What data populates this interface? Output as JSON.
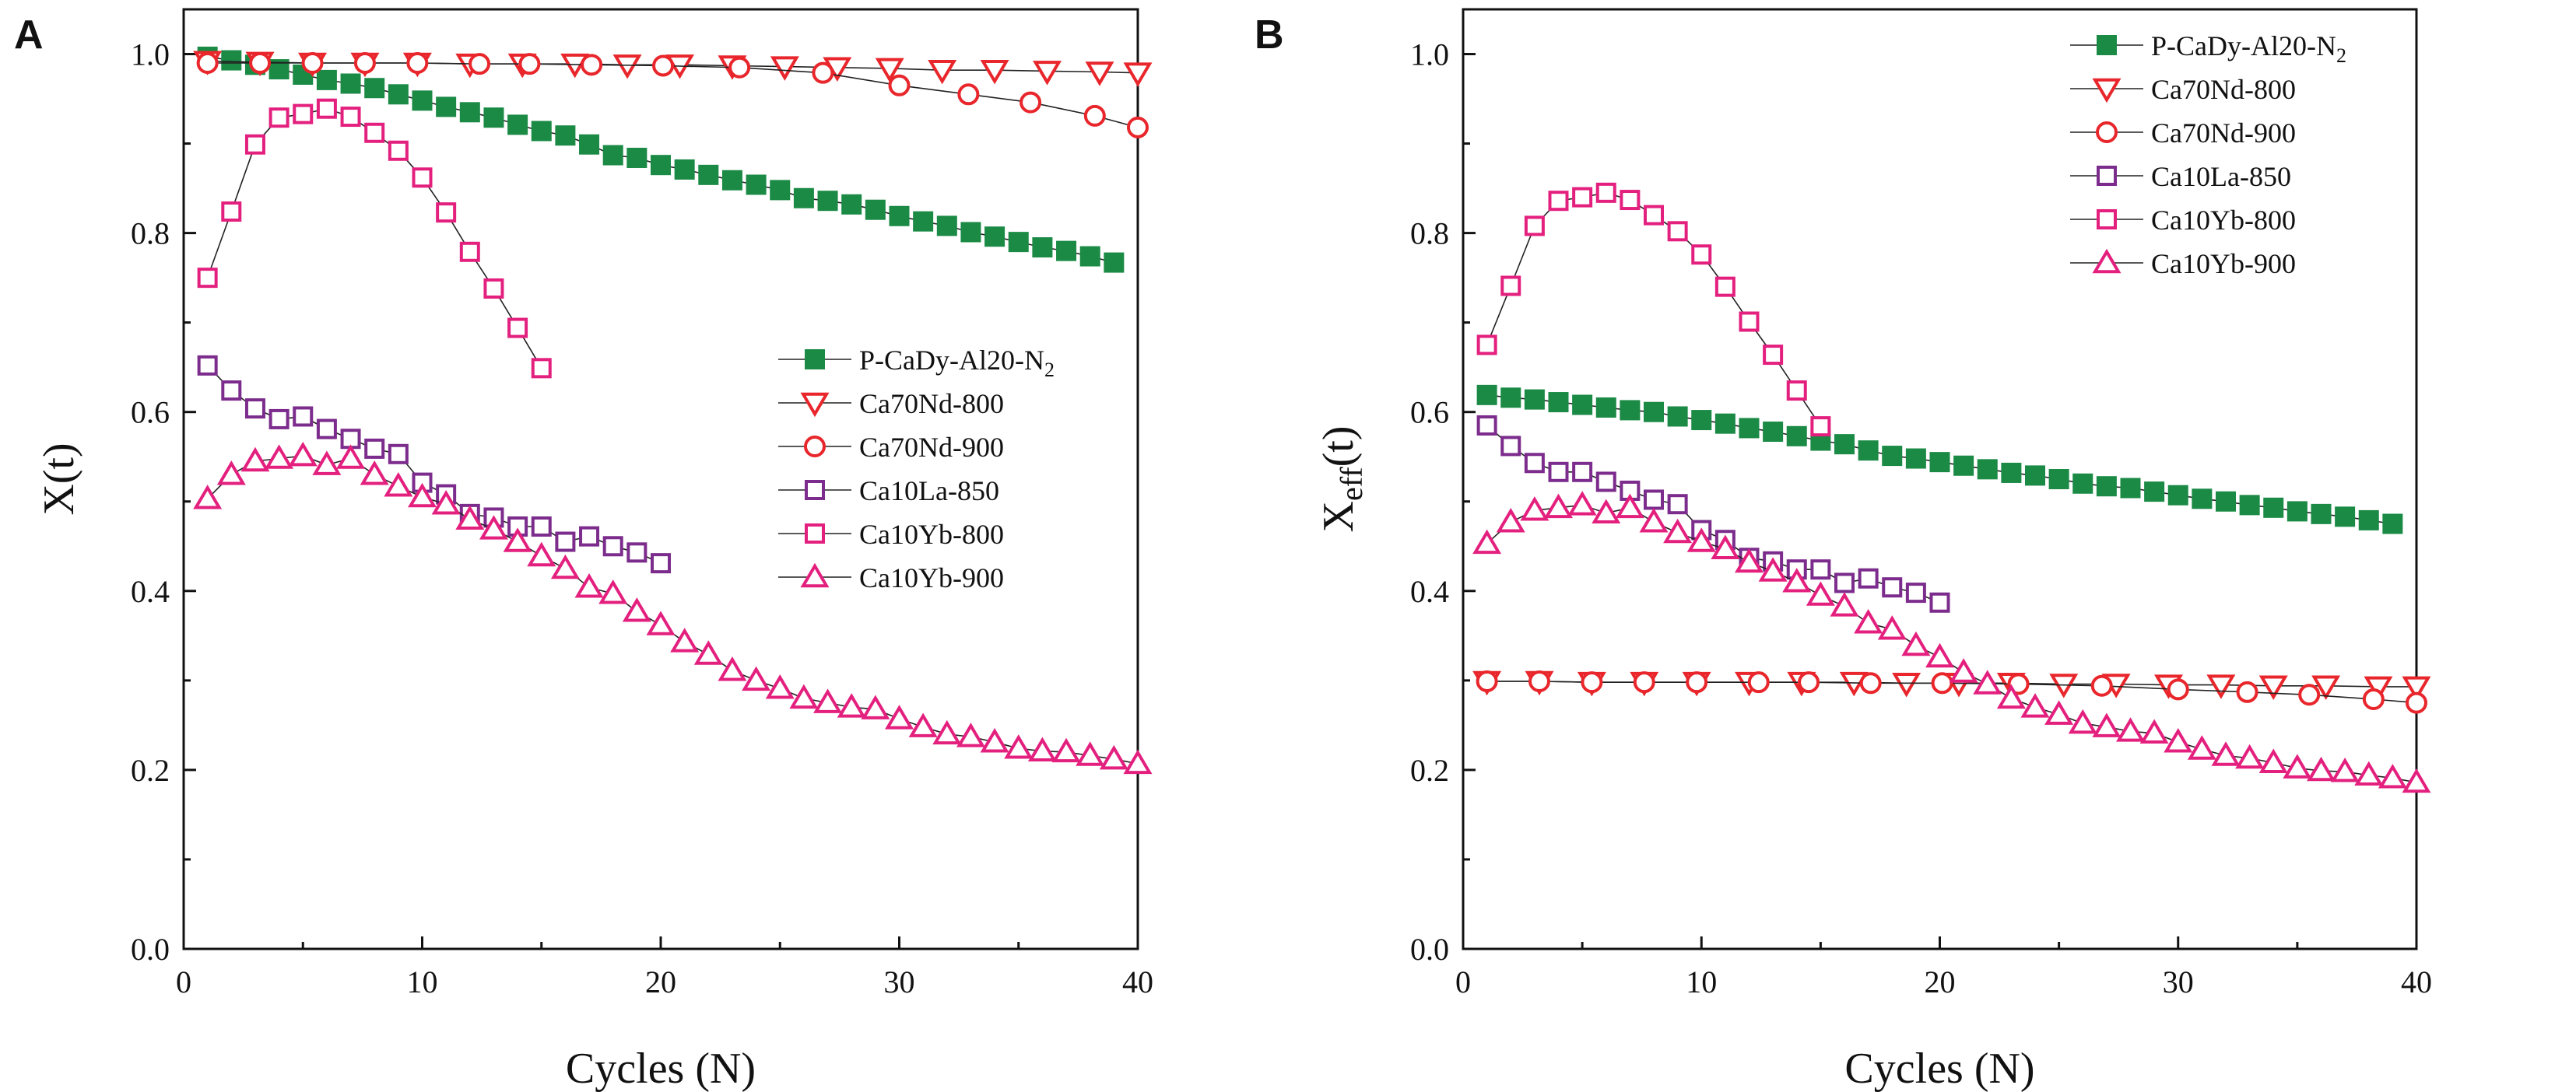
{
  "colors": {
    "green": "#1a8a45",
    "red": "#e8262b",
    "purple": "#7c2c8c",
    "pink": "#e4207f",
    "axis": "#111111"
  },
  "chart_data": [
    {
      "type": "scatter",
      "panel_label": "A",
      "xlabel": "Cycles (N)",
      "ylabel": "X(t)",
      "xlim": [
        0,
        40
      ],
      "ylim": [
        0,
        1.05
      ],
      "xticks": [
        0,
        10,
        20,
        30,
        40
      ],
      "yticks": [
        0.0,
        0.2,
        0.4,
        0.6,
        0.8,
        1.0
      ],
      "xtick_labels": [
        "0",
        "10",
        "20",
        "30",
        "40"
      ],
      "ytick_labels": [
        "0.0",
        "0.2",
        "0.4",
        "0.6",
        "0.8",
        "1.0"
      ],
      "legend_position": "center-right",
      "series": [
        {
          "name": "P-CaDy-Al20-N2",
          "label_main": "P-CaDy-Al20-N",
          "label_sub": "2",
          "marker": "square-filled",
          "color": "#1a8a45",
          "x": [
            1,
            2,
            3,
            4,
            5,
            6,
            7,
            8,
            9,
            10,
            11,
            12,
            13,
            14,
            15,
            16,
            17,
            18,
            19,
            20,
            21,
            22,
            23,
            24,
            25,
            26,
            27,
            28,
            29,
            30,
            31,
            32,
            33,
            34,
            35,
            36,
            37,
            38,
            39
          ],
          "y": [
            0.997,
            0.993,
            0.988,
            0.983,
            0.977,
            0.971,
            0.967,
            0.962,
            0.955,
            0.948,
            0.941,
            0.935,
            0.929,
            0.921,
            0.914,
            0.909,
            0.899,
            0.887,
            0.884,
            0.876,
            0.871,
            0.865,
            0.859,
            0.854,
            0.848,
            0.839,
            0.836,
            0.832,
            0.826,
            0.819,
            0.813,
            0.808,
            0.801,
            0.796,
            0.79,
            0.784,
            0.78,
            0.774,
            0.767
          ]
        },
        {
          "name": "Ca70Nd-800",
          "label_main": "Ca70Nd-800",
          "label_sub": "",
          "marker": "triangle-down-open",
          "color": "#e8262b",
          "x": [
            1,
            3.2,
            5.4,
            7.6,
            9.8,
            12,
            14.2,
            16.4,
            18.6,
            20.8,
            23,
            25.2,
            27.4,
            29.6,
            31.8,
            34,
            36.2,
            38.4,
            40
          ],
          "y": [
            0.992,
            0.991,
            0.99,
            0.99,
            0.99,
            0.989,
            0.989,
            0.989,
            0.988,
            0.988,
            0.987,
            0.986,
            0.985,
            0.984,
            0.982,
            0.982,
            0.981,
            0.98,
            0.979
          ]
        },
        {
          "name": "Ca70Nd-900",
          "label_main": "Ca70Nd-900",
          "label_sub": "",
          "marker": "circle-open",
          "color": "#e8262b",
          "x": [
            1,
            3.2,
            5.4,
            7.6,
            9.8,
            12.4,
            14.5,
            17.1,
            20.1,
            23.3,
            26.8,
            30,
            32.9,
            35.5,
            38.2,
            40
          ],
          "y": [
            0.99,
            0.99,
            0.99,
            0.99,
            0.99,
            0.989,
            0.989,
            0.988,
            0.987,
            0.985,
            0.979,
            0.965,
            0.955,
            0.946,
            0.931,
            0.918
          ]
        },
        {
          "name": "Ca10La-850",
          "label_main": "Ca10La-850",
          "label_sub": "",
          "marker": "square-open",
          "color": "#7c2c8c",
          "x": [
            1,
            2,
            3,
            4,
            5,
            6,
            7,
            8,
            9,
            10,
            11,
            12,
            13,
            14,
            15,
            16,
            17,
            18,
            19,
            20
          ],
          "y": [
            0.652,
            0.624,
            0.604,
            0.592,
            0.595,
            0.581,
            0.57,
            0.559,
            0.553,
            0.521,
            0.508,
            0.486,
            0.482,
            0.472,
            0.472,
            0.455,
            0.461,
            0.45,
            0.443,
            0.431
          ]
        },
        {
          "name": "Ca10Yb-800",
          "label_main": "Ca10Yb-800",
          "label_sub": "",
          "marker": "square-open",
          "color": "#e4207f",
          "x": [
            1,
            2,
            3,
            4,
            5,
            6,
            7,
            8,
            9,
            10,
            11,
            12,
            13,
            14,
            15
          ],
          "y": [
            0.75,
            0.824,
            0.899,
            0.929,
            0.933,
            0.939,
            0.93,
            0.912,
            0.892,
            0.862,
            0.823,
            0.779,
            0.738,
            0.694,
            0.649
          ]
        },
        {
          "name": "Ca10Yb-900",
          "label_main": "Ca10Yb-900",
          "label_sub": "",
          "marker": "triangle-up-open",
          "color": "#e4207f",
          "x": [
            1,
            2,
            3,
            4,
            5,
            6,
            7,
            8,
            9,
            10,
            11,
            12,
            13,
            14,
            15,
            16,
            17,
            18,
            19,
            20,
            21,
            22,
            23,
            24,
            25,
            26,
            27,
            28,
            29,
            30,
            31,
            32,
            33,
            34,
            35,
            36,
            37,
            38,
            39,
            40
          ],
          "y": [
            0.503,
            0.53,
            0.545,
            0.548,
            0.551,
            0.541,
            0.548,
            0.53,
            0.517,
            0.505,
            0.497,
            0.48,
            0.469,
            0.455,
            0.439,
            0.425,
            0.404,
            0.397,
            0.377,
            0.362,
            0.343,
            0.329,
            0.311,
            0.3,
            0.291,
            0.28,
            0.275,
            0.27,
            0.268,
            0.257,
            0.248,
            0.24,
            0.237,
            0.231,
            0.224,
            0.221,
            0.22,
            0.216,
            0.212,
            0.207
          ]
        }
      ]
    },
    {
      "type": "scatter",
      "panel_label": "B",
      "xlabel": "Cycles (N)",
      "ylabel": "X",
      "ylabel_sub": "eff",
      "ylabel_suffix": "(t)",
      "xlim": [
        0,
        40
      ],
      "ylim": [
        0,
        1.05
      ],
      "xticks": [
        0,
        10,
        20,
        30,
        40
      ],
      "yticks": [
        0.0,
        0.2,
        0.4,
        0.6,
        0.8,
        1.0
      ],
      "xtick_labels": [
        "0",
        "10",
        "20",
        "30",
        "40"
      ],
      "ytick_labels": [
        "0.0",
        "0.2",
        "0.4",
        "0.6",
        "0.8",
        "1.0"
      ],
      "legend_position": "top-right",
      "series": [
        {
          "name": "P-CaDy-Al20-N2",
          "label_main": "P-CaDy-Al20-N",
          "label_sub": "2",
          "marker": "square-filled",
          "color": "#1a8a45",
          "x": [
            1,
            2,
            3,
            4,
            5,
            6,
            7,
            8,
            9,
            10,
            11,
            12,
            13,
            14,
            15,
            16,
            17,
            18,
            19,
            20,
            21,
            22,
            23,
            24,
            25,
            26,
            27,
            28,
            29,
            30,
            31,
            32,
            33,
            34,
            35,
            36,
            37,
            38,
            39
          ],
          "y": [
            0.619,
            0.616,
            0.614,
            0.611,
            0.608,
            0.605,
            0.602,
            0.6,
            0.595,
            0.591,
            0.587,
            0.582,
            0.578,
            0.573,
            0.568,
            0.564,
            0.557,
            0.551,
            0.548,
            0.544,
            0.54,
            0.536,
            0.532,
            0.529,
            0.525,
            0.52,
            0.517,
            0.515,
            0.511,
            0.507,
            0.503,
            0.5,
            0.496,
            0.493,
            0.489,
            0.486,
            0.483,
            0.479,
            0.475
          ]
        },
        {
          "name": "Ca70Nd-800",
          "label_main": "Ca70Nd-800",
          "label_sub": "",
          "marker": "triangle-down-open",
          "color": "#e8262b",
          "x": [
            1,
            3.2,
            5.4,
            7.6,
            9.8,
            12,
            14.2,
            16.4,
            18.6,
            20.8,
            23,
            25.2,
            27.4,
            29.6,
            31.8,
            34,
            36.2,
            38.4,
            40
          ],
          "y": [
            0.299,
            0.299,
            0.298,
            0.298,
            0.298,
            0.298,
            0.298,
            0.298,
            0.297,
            0.297,
            0.297,
            0.296,
            0.296,
            0.295,
            0.295,
            0.294,
            0.294,
            0.293,
            0.293
          ]
        },
        {
          "name": "Ca70Nd-900",
          "label_main": "Ca70Nd-900",
          "label_sub": "",
          "marker": "circle-open",
          "color": "#e8262b",
          "x": [
            1,
            3.2,
            5.4,
            7.6,
            9.8,
            12.4,
            14.5,
            17.1,
            20.1,
            23.3,
            26.8,
            30,
            32.9,
            35.5,
            38.2,
            40
          ],
          "y": [
            0.299,
            0.299,
            0.298,
            0.298,
            0.298,
            0.298,
            0.298,
            0.297,
            0.297,
            0.296,
            0.294,
            0.29,
            0.287,
            0.284,
            0.279,
            0.275
          ]
        },
        {
          "name": "Ca10La-850",
          "label_main": "Ca10La-850",
          "label_sub": "",
          "marker": "square-open",
          "color": "#7c2c8c",
          "x": [
            1,
            2,
            3,
            4,
            5,
            6,
            7,
            8,
            9,
            10,
            11,
            12,
            13,
            14,
            15,
            16,
            17,
            18,
            19,
            20
          ],
          "y": [
            0.585,
            0.562,
            0.543,
            0.533,
            0.533,
            0.522,
            0.512,
            0.502,
            0.497,
            0.468,
            0.457,
            0.437,
            0.433,
            0.424,
            0.424,
            0.409,
            0.414,
            0.404,
            0.398,
            0.387
          ]
        },
        {
          "name": "Ca10Yb-800",
          "label_main": "Ca10Yb-800",
          "label_sub": "",
          "marker": "square-open",
          "color": "#e4207f",
          "x": [
            1,
            2,
            3,
            4,
            5,
            6,
            7,
            8,
            9,
            10,
            11,
            12,
            13,
            14,
            15
          ],
          "y": [
            0.675,
            0.741,
            0.808,
            0.836,
            0.84,
            0.845,
            0.837,
            0.82,
            0.802,
            0.776,
            0.74,
            0.701,
            0.664,
            0.624,
            0.584
          ]
        },
        {
          "name": "Ca10Yb-900",
          "label_main": "Ca10Yb-900",
          "label_sub": "",
          "marker": "triangle-up-open",
          "color": "#e4207f",
          "x": [
            1,
            2,
            3,
            4,
            5,
            6,
            7,
            8,
            9,
            10,
            11,
            12,
            13,
            14,
            15,
            16,
            17,
            18,
            19,
            20,
            21,
            22,
            23,
            24,
            25,
            26,
            27,
            28,
            29,
            30,
            31,
            32,
            33,
            34,
            35,
            36,
            37,
            38,
            39,
            40
          ],
          "y": [
            0.453,
            0.477,
            0.49,
            0.493,
            0.496,
            0.487,
            0.493,
            0.477,
            0.465,
            0.455,
            0.447,
            0.432,
            0.422,
            0.41,
            0.395,
            0.383,
            0.364,
            0.357,
            0.339,
            0.326,
            0.309,
            0.296,
            0.28,
            0.27,
            0.262,
            0.252,
            0.248,
            0.243,
            0.241,
            0.231,
            0.223,
            0.216,
            0.213,
            0.208,
            0.202,
            0.199,
            0.198,
            0.194,
            0.191,
            0.186
          ]
        }
      ]
    }
  ]
}
